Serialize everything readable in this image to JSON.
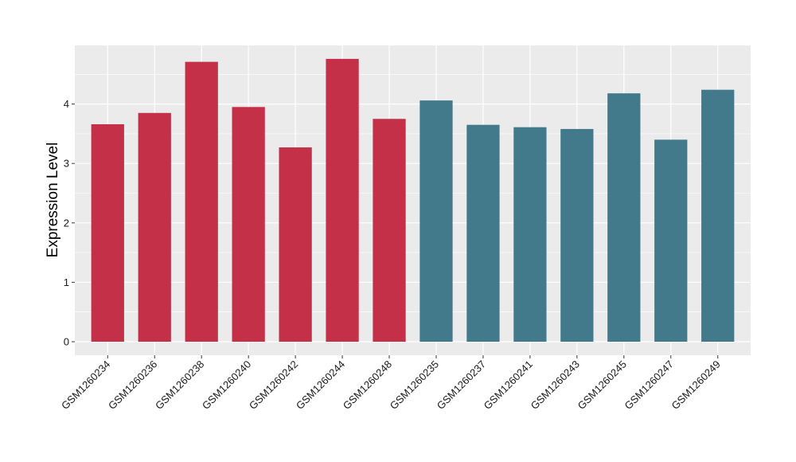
{
  "chart_data": {
    "type": "bar",
    "title": "",
    "xlabel": "",
    "ylabel": "Expression Level",
    "ylim": [
      -0.2,
      4.95
    ],
    "yticks": [
      0,
      1,
      2,
      3,
      4
    ],
    "grid": true,
    "legend": "none",
    "colors": {
      "group_a": "#c33047",
      "group_b": "#427a8b",
      "panel": "#ebebeb",
      "grid": "#ffffff"
    },
    "categories": [
      "GSM1260234",
      "GSM1260236",
      "GSM1260238",
      "GSM1260240",
      "GSM1260242",
      "GSM1260244",
      "GSM1260248",
      "GSM1260235",
      "GSM1260237",
      "GSM1260241",
      "GSM1260243",
      "GSM1260245",
      "GSM1260247",
      "GSM1260249"
    ],
    "values": [
      3.66,
      3.85,
      4.71,
      3.95,
      3.27,
      4.76,
      3.75,
      4.06,
      3.65,
      3.61,
      3.58,
      4.18,
      3.4,
      4.24
    ],
    "groups": [
      "a",
      "a",
      "a",
      "a",
      "a",
      "a",
      "a",
      "b",
      "b",
      "b",
      "b",
      "b",
      "b",
      "b"
    ]
  }
}
